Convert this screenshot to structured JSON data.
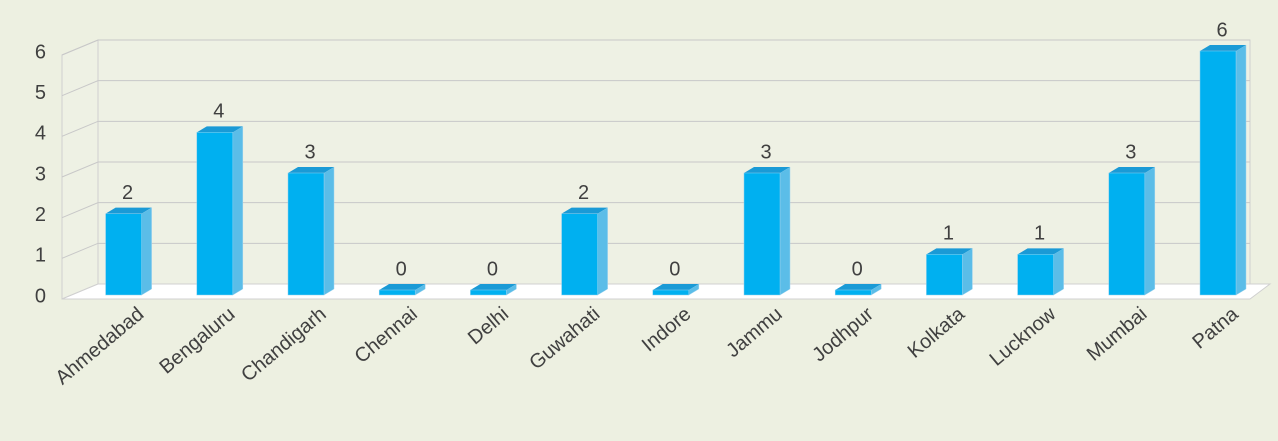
{
  "chart_data": {
    "type": "bar",
    "categories": [
      "Ahmedabad",
      "Bengaluru",
      "Chandigarh",
      "Chennai",
      "Delhi",
      "Guwahati",
      "Indore",
      "Jammu",
      "Jodhpur",
      "Kolkata",
      "Lucknow",
      "Mumbai",
      "Patna"
    ],
    "values": [
      2,
      4,
      3,
      0,
      0,
      2,
      0,
      3,
      0,
      1,
      1,
      3,
      6
    ],
    "color": "#00b0f0",
    "ylim": [
      0,
      6
    ],
    "yticks": [
      0,
      1,
      2,
      3,
      4,
      5,
      6
    ],
    "grid": true
  }
}
